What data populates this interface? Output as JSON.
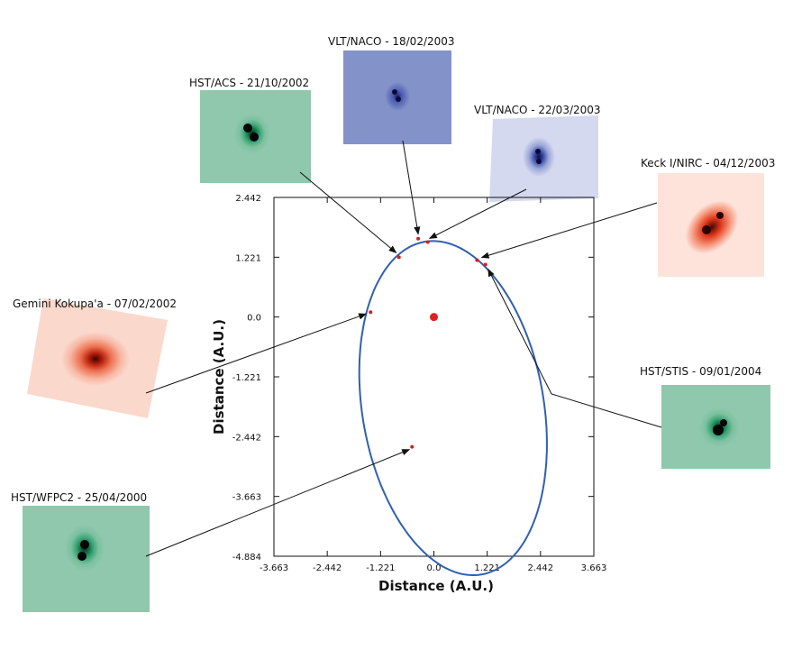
{
  "chart_data": {
    "type": "scatter",
    "xlabel": "Distance (A.U.)",
    "ylabel": "Distance (A.U.)",
    "xlim": [
      -3.663,
      3.663
    ],
    "ylim": [
      -4.884,
      2.442
    ],
    "xticks": [
      -3.663,
      -2.442,
      -1.221,
      0.0,
      1.221,
      2.442,
      3.663
    ],
    "xtick_labels": [
      "-3.663",
      "-2.442",
      "-1.221",
      "0.0",
      "1.221",
      "2.442",
      "3.663"
    ],
    "yticks": [
      2.442,
      1.221,
      0.0,
      -1.221,
      -2.442,
      -3.663,
      -4.884
    ],
    "ytick_labels": [
      "2.442",
      "1.221",
      "0.0",
      "-1.221",
      "-2.442",
      "-3.663",
      "-4.884"
    ],
    "primary": {
      "x": 0.0,
      "y": 0.0,
      "color": "#e02020"
    },
    "orbit": {
      "cx": 0.44,
      "cy": -1.86,
      "semi_major": 3.46,
      "semi_minor": 2.07,
      "tilt_deg": -78,
      "color": "#3060b0"
    },
    "observations": [
      {
        "label": "HST/WFPC2 - 25/04/2000",
        "x": -0.5,
        "y": -2.65,
        "thumb": "green"
      },
      {
        "label": "Gemini Kokupa'a - 07/02/2002",
        "x": -1.45,
        "y": 0.1,
        "thumb": "red"
      },
      {
        "label": "HST/ACS - 21/10/2002",
        "x": -0.8,
        "y": 1.22,
        "thumb": "green"
      },
      {
        "label": "VLT/NACO - 18/02/2003",
        "x": -0.36,
        "y": 1.6,
        "thumb": "blue"
      },
      {
        "label": "VLT/NACO - 22/03/2003",
        "x": -0.14,
        "y": 1.53,
        "thumb": "blue"
      },
      {
        "label": "Keck I/NIRC - 04/12/2003",
        "x": 0.99,
        "y": 1.16,
        "thumb": "red"
      },
      {
        "label": "HST/STIS - 09/01/2004",
        "x": 1.18,
        "y": 1.07,
        "thumb": "green"
      }
    ],
    "point_color": "#d02020",
    "grid": false
  }
}
